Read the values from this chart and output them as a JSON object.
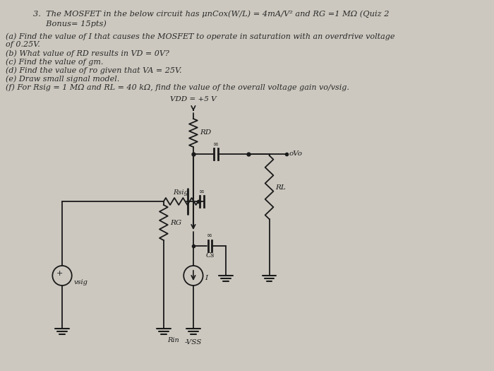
{
  "background_color": "#ccc8bf",
  "title_line1": "3.  The MOSFET in the below circuit has μnCox(W/L) = 4mA/V² and RG =1 MΩ (Quiz 2",
  "title_line2": "     Bonus= 15pts)",
  "q_a1": "(a) Find the value of I that causes the MOSFET to operate in saturation with an overdrive voltage",
  "q_a2": "of 0.25V.",
  "q_b": "(b) What value of RD results in VD = 0V?",
  "q_c": "(c) Find the value of gm.",
  "q_d": "(d) Find the value of ro given that VA = 25V.",
  "q_e": "(e) Draw small signal model.",
  "q_f": "(f) For Rsig = 1 MΩ and RL = 40 kΩ, find the value of the overall voltage gain vo/vsig.",
  "vdd_label": "VDD = +5 V",
  "rd_label": "RD",
  "rg_label": "RG",
  "rl_label": "RL",
  "rsig_label": "Rsig",
  "rin_label": "Rin",
  "cs_label": "Cs",
  "i_label": "I",
  "vo_label": "oVo",
  "vsig_label": "vsig",
  "vss_label": "-VSS"
}
